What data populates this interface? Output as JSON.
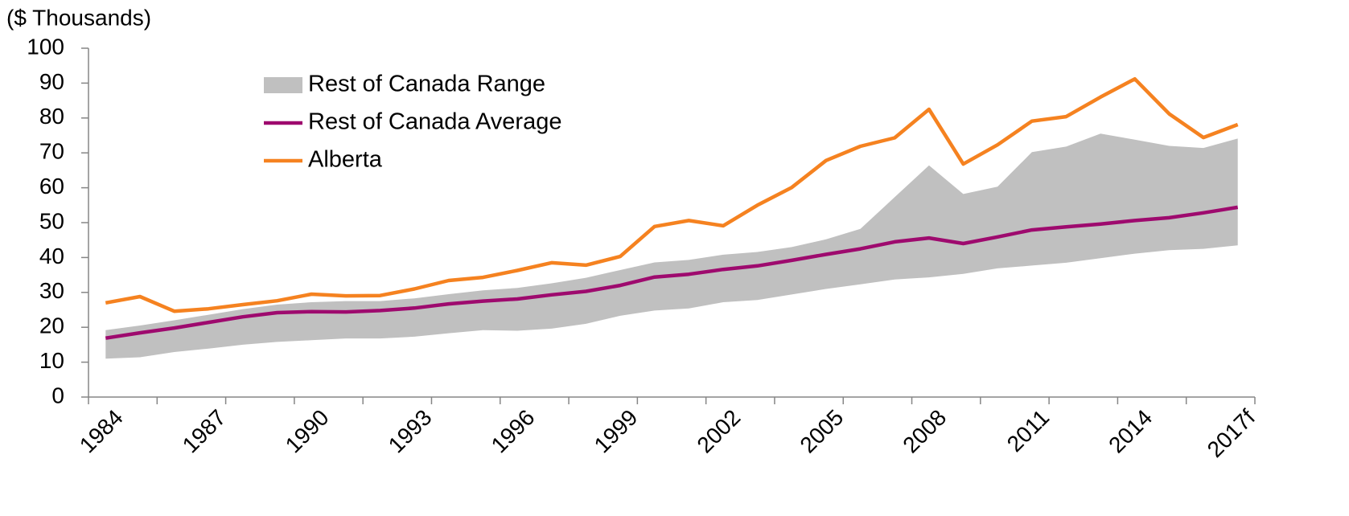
{
  "chart_data": {
    "type": "line",
    "y_axis_label": "($ Thousands)",
    "categories": [
      "1984",
      null,
      null,
      "1987",
      null,
      null,
      "1990",
      null,
      null,
      "1993",
      null,
      null,
      "1996",
      null,
      null,
      "1999",
      null,
      null,
      "2002",
      null,
      null,
      "2005",
      null,
      null,
      "2008",
      null,
      null,
      "2011",
      null,
      null,
      "2014",
      null,
      null,
      "2017f"
    ],
    "series": [
      {
        "name": "Rest of Canada Range",
        "type": "range",
        "color": "#c0c0c0",
        "low": [
          11,
          11.4,
          12.9,
          13.9,
          15,
          15.8,
          16.3,
          16.8,
          16.8,
          17.3,
          18.3,
          19.2,
          19,
          19.6,
          21,
          23.3,
          24.8,
          25.4,
          27.2,
          27.8,
          29.4,
          31,
          32.3,
          33.7,
          34.3,
          35.3,
          36.9,
          37.7,
          38.5,
          39.8,
          41.1,
          42.1,
          42.5,
          43.5
        ],
        "high": [
          19.2,
          20.5,
          22,
          23.6,
          25.2,
          26.5,
          27.2,
          27.5,
          27.5,
          28.3,
          29.5,
          30.6,
          31.3,
          32.6,
          34.2,
          36.4,
          38.6,
          39.3,
          40.8,
          41.6,
          43,
          45.2,
          48.2,
          57.3,
          66.4,
          58.2,
          60.3,
          70.2,
          71.8,
          75.5,
          73.8,
          72,
          71.4,
          74.1
        ]
      },
      {
        "name": "Rest of Canada Average",
        "type": "line",
        "color": "#9e0a6e",
        "values": [
          16.9,
          18.4,
          19.8,
          21.4,
          23,
          24.2,
          24.5,
          24.4,
          24.8,
          25.5,
          26.7,
          27.5,
          28.1,
          29.3,
          30.3,
          32,
          34.4,
          35.2,
          36.6,
          37.6,
          39.2,
          40.9,
          42.5,
          44.5,
          45.6,
          44,
          45.9,
          47.9,
          48.8,
          49.6,
          50.6,
          51.4,
          52.8,
          54.4
        ]
      },
      {
        "name": "Alberta",
        "type": "line",
        "color": "#f58220",
        "values": [
          27,
          28.8,
          24.6,
          25.3,
          26.5,
          27.6,
          29.5,
          29,
          29.1,
          31,
          33.4,
          34.3,
          36.3,
          38.5,
          37.8,
          40.3,
          48.9,
          50.6,
          49.1,
          55,
          60.1,
          67.8,
          71.9,
          74.3,
          82.5,
          66.8,
          72.3,
          79.1,
          80.4,
          86,
          91.2,
          81.2,
          74.4,
          78.1
        ]
      }
    ],
    "ylim": [
      0,
      100
    ],
    "yticks": [
      0,
      10,
      20,
      30,
      40,
      50,
      60,
      70,
      80,
      90,
      100
    ],
    "grid": false,
    "legend": "upper left"
  }
}
